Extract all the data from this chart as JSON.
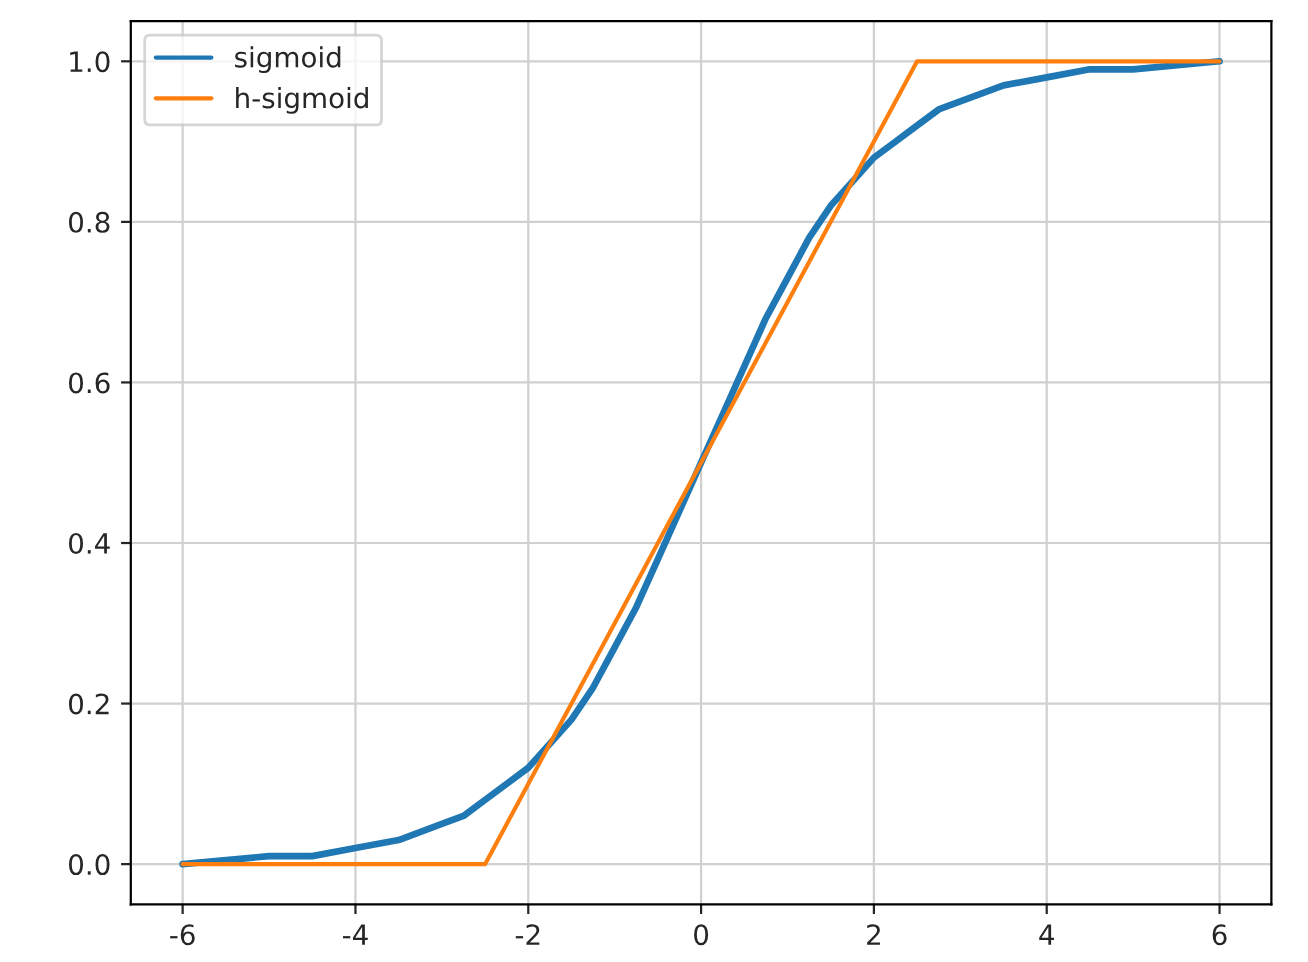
{
  "chart_data": {
    "type": "line",
    "xlim": [
      -6.6,
      6.6
    ],
    "ylim": [
      -0.05,
      1.05
    ],
    "xticks": [
      -6,
      -4,
      -2,
      0,
      2,
      4,
      6
    ],
    "yticks": [
      {
        "value": 0,
        "label": "0.0"
      },
      {
        "value": 0.2,
        "label": "0.2"
      },
      {
        "value": 0.4,
        "label": "0.4"
      },
      {
        "value": 0.6,
        "label": "0.6"
      },
      {
        "value": 0.8,
        "label": "0.8"
      },
      {
        "value": 1,
        "label": "1.0"
      }
    ],
    "grid": true,
    "legend": "top left",
    "series": [
      {
        "name": "sigmoid",
        "color": "#1f77b4",
        "x": [
          -6,
          -5,
          -4.5,
          -4,
          -3.5,
          -3,
          -2.75,
          -2.5,
          -2.25,
          -2,
          -1.75,
          -1.5,
          -1.25,
          -1,
          -0.75,
          -0.5,
          -0.25,
          0,
          0.25,
          0.5,
          0.75,
          1,
          1.25,
          1.5,
          1.75,
          2,
          2.25,
          2.5,
          2.75,
          3,
          3.5,
          4,
          4.5,
          5,
          6
        ],
        "values": [
          0.0,
          0.01,
          0.01,
          0.02,
          0.03,
          0.05,
          0.06,
          0.08,
          0.1,
          0.12,
          0.15,
          0.18,
          0.22,
          0.27,
          0.32,
          0.38,
          0.44,
          0.5,
          0.56,
          0.62,
          0.68,
          0.73,
          0.78,
          0.82,
          0.85,
          0.88,
          0.9,
          0.92,
          0.94,
          0.95,
          0.97,
          0.98,
          0.99,
          0.99,
          1.0
        ]
      },
      {
        "name": "h-sigmoid",
        "color": "#ff7f0e",
        "x": [
          -6,
          -2.5,
          2.5,
          6
        ],
        "values": [
          0,
          0,
          1,
          1
        ]
      }
    ]
  }
}
